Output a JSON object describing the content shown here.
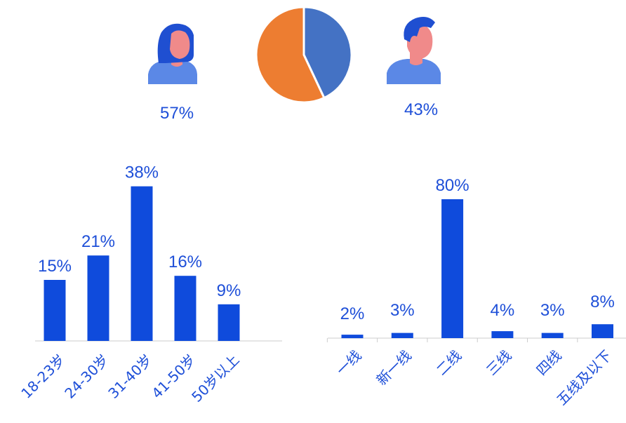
{
  "colors": {
    "bar": "#0f4bdc",
    "label": "#1e4fd8",
    "female_slice": "#ed7d31",
    "male_slice": "#4472c4",
    "axis": "#cccccc",
    "avatar_hair": "#1f4fd1",
    "avatar_face": "#f08a8a",
    "avatar_body": "#5b88e6"
  },
  "gender": {
    "female_label": "57%",
    "male_label": "43%",
    "female_icon": "female-avatar-icon",
    "male_icon": "male-avatar-icon"
  },
  "chart_data": [
    {
      "type": "pie",
      "categories": [
        "female",
        "male"
      ],
      "values": [
        57,
        43
      ],
      "title": "",
      "legend": "none"
    },
    {
      "type": "bar",
      "categories": [
        "18-23岁",
        "24-30岁",
        "31-40岁",
        "41-50岁",
        "50岁以上"
      ],
      "values": [
        15,
        21,
        38,
        16,
        9
      ],
      "data_labels": [
        "15%",
        "21%",
        "38%",
        "16%",
        "9%"
      ],
      "title": "",
      "xlabel": "",
      "ylabel": "",
      "ylim": [
        0,
        40
      ],
      "grid": false,
      "legend": "none"
    },
    {
      "type": "bar",
      "categories": [
        "一线",
        "新一线",
        "二线",
        "三线",
        "四线",
        "五线及以下"
      ],
      "values": [
        2,
        3,
        80,
        4,
        3,
        8
      ],
      "data_labels": [
        "2%",
        "3%",
        "80%",
        "4%",
        "3%",
        "8%"
      ],
      "title": "",
      "xlabel": "",
      "ylabel": "",
      "ylim": [
        0,
        100
      ],
      "grid": false,
      "legend": "none"
    }
  ]
}
